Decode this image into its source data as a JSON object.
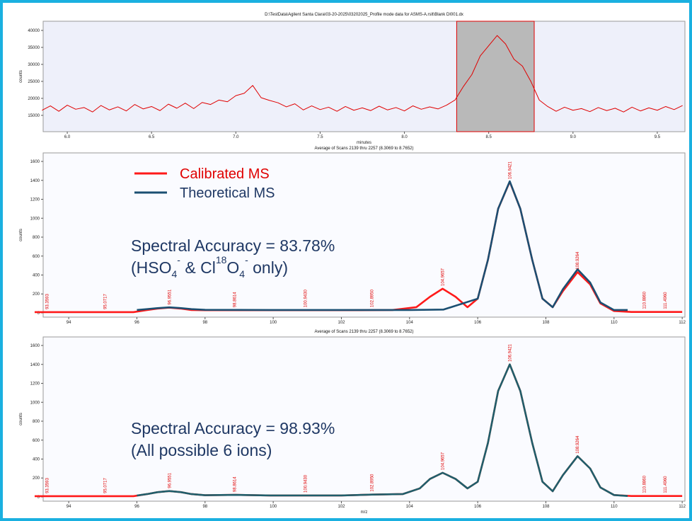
{
  "chart_data": [
    {
      "type": "line",
      "title": "D:\\TestData\\Agilent Santa Clara\\03-20-2025\\03202025_Profile mode data for ASMS-A.rslt\\Blank DI001.dx",
      "xlabel": "minutes",
      "ylabel": "counts",
      "xlim": [
        5.857,
        9.664
      ],
      "ylim": [
        10200,
        42700
      ],
      "xticks": [
        {
          "value": 6,
          "label": "6.0"
        },
        6.5,
        {
          "value": 7,
          "label": "7.0"
        },
        7.5,
        {
          "value": 8,
          "label": "8.0"
        },
        8.5,
        {
          "value": 9,
          "label": "9.0"
        },
        9.5
      ],
      "yticks": [
        15000,
        20000,
        25000,
        30000,
        35000,
        40000
      ],
      "selection": [
        8.31,
        8.77
      ],
      "series": [
        {
          "color": "#e00000",
          "x": [
            5.85,
            5.9,
            5.95,
            6.0,
            6.05,
            6.1,
            6.15,
            6.2,
            6.25,
            6.3,
            6.35,
            6.4,
            6.45,
            6.5,
            6.55,
            6.6,
            6.65,
            6.7,
            6.75,
            6.8,
            6.85,
            6.9,
            6.95,
            7.0,
            7.05,
            7.1,
            7.15,
            7.2,
            7.25,
            7.3,
            7.35,
            7.4,
            7.45,
            7.5,
            7.55,
            7.6,
            7.65,
            7.7,
            7.75,
            7.8,
            7.85,
            7.9,
            7.95,
            8.0,
            8.05,
            8.1,
            8.15,
            8.2,
            8.25,
            8.3,
            8.35,
            8.4,
            8.45,
            8.5,
            8.55,
            8.6,
            8.65,
            8.7,
            8.75,
            8.8,
            8.85,
            8.9,
            8.95,
            9.0,
            9.05,
            9.1,
            9.15,
            9.2,
            9.25,
            9.3,
            9.35,
            9.4,
            9.45,
            9.5,
            9.55,
            9.6,
            9.65
          ],
          "values": [
            16500,
            17800,
            16200,
            18000,
            16800,
            17300,
            16000,
            17900,
            16600,
            17500,
            16300,
            18200,
            16900,
            17600,
            16400,
            18300,
            17100,
            18600,
            17000,
            18800,
            18200,
            19500,
            19000,
            20800,
            21500,
            23800,
            20200,
            19400,
            18700,
            17500,
            18400,
            16600,
            17800,
            16700,
            17400,
            16200,
            17600,
            16500,
            17200,
            16400,
            17700,
            16600,
            17300,
            16300,
            17800,
            16800,
            17500,
            16900,
            18000,
            19500,
            23500,
            27000,
            32500,
            35500,
            38500,
            36000,
            31500,
            29500,
            25000,
            19500,
            17600,
            16200,
            17400,
            16500,
            17000,
            16100,
            17300,
            16400,
            17100,
            16000,
            17400,
            16300,
            17200,
            16500,
            17600,
            16700,
            17900
          ]
        }
      ]
    },
    {
      "type": "line",
      "title": "Average of Scans 2139 thru 2257 (8.3069 to 8.7652)",
      "ylabel": "counts",
      "xlim": [
        93.25,
        112.08
      ],
      "ylim": [
        -45,
        1690
      ],
      "xticks": [
        94,
        96,
        98,
        100,
        102,
        104,
        106,
        108,
        110,
        112
      ],
      "yticks": [
        0,
        200,
        400,
        600,
        800,
        1000,
        1200,
        1400,
        1600
      ],
      "legend": "upper left",
      "peak_labels": [
        93.3593,
        95.0717,
        96.9551,
        98.8614,
        {
          "value": 100.943,
          "label": "100.9430"
        },
        {
          "value": 102.895,
          "label": "102.8950"
        },
        104.9657,
        106.9421,
        108.9264,
        {
          "value": 110.886,
          "label": "110.8860"
        },
        {
          "value": 111.496,
          "label": "111.4960"
        }
      ],
      "annotations": [
        [
          {
            "text": "Spectral Accuracy = 83.78%"
          }
        ],
        [
          {
            "text": "(HSO"
          },
          {
            "text": "4",
            "style": "sub"
          },
          {
            "text": "-",
            "style": "sup"
          },
          {
            "text": " & Cl"
          },
          {
            "text": "18",
            "style": "sup"
          },
          {
            "text": "O"
          },
          {
            "text": "4",
            "style": "sub"
          },
          {
            "text": "-",
            "style": "sup"
          },
          {
            "text": " only)"
          }
        ]
      ],
      "series": [
        {
          "name": "Calibrated MS",
          "color": "#ff1a1a",
          "x": [
            93,
            95.9,
            96.3,
            96.6,
            96.95,
            97.3,
            97.6,
            98,
            100,
            102,
            103.5,
            104.2,
            104.6,
            104.97,
            105.35,
            105.7,
            106,
            106.3,
            106.6,
            106.94,
            107.25,
            107.6,
            107.9,
            108.2,
            108.5,
            108.93,
            109.3,
            109.6,
            110,
            110.5,
            112
          ],
          "values": [
            8,
            8,
            30,
            45,
            55,
            45,
            30,
            28,
            28,
            28,
            30,
            60,
            170,
            255,
            170,
            60,
            150,
            560,
            1100,
            1385,
            1100,
            560,
            150,
            60,
            230,
            430,
            300,
            100,
            20,
            10,
            10
          ]
        },
        {
          "name": "Theoretical MS",
          "color": "#1b4f72",
          "x": [
            96,
            96.3,
            96.6,
            96.95,
            97.3,
            97.6,
            98,
            100,
            102,
            104,
            105,
            106,
            106.3,
            106.6,
            106.94,
            107.25,
            107.6,
            107.9,
            108.2,
            108.5,
            108.93,
            109.3,
            109.6,
            110,
            110.4
          ],
          "values": [
            30,
            40,
            50,
            58,
            50,
            40,
            32,
            30,
            30,
            30,
            35,
            150,
            560,
            1100,
            1390,
            1100,
            560,
            150,
            60,
            250,
            460,
            320,
            110,
            30,
            30
          ]
        }
      ]
    },
    {
      "type": "line",
      "title": "Average of Scans 2139 thru 2257 (8.3069 to 8.7652)",
      "xlabel": "m/z",
      "ylabel": "counts",
      "xlim": [
        93.25,
        112.08
      ],
      "ylim": [
        -45,
        1690
      ],
      "xticks": [
        94,
        96,
        98,
        100,
        102,
        104,
        106,
        108,
        110,
        112
      ],
      "yticks": [
        0,
        200,
        400,
        600,
        800,
        1000,
        1200,
        1400,
        1600
      ],
      "peak_labels": [
        93.3593,
        95.0717,
        96.9551,
        98.8614,
        {
          "value": 100.943,
          "label": "100.9430"
        },
        {
          "value": 102.895,
          "label": "102.8950"
        },
        104.9657,
        106.9421,
        108.9264,
        {
          "value": 110.886,
          "label": "110.8860"
        },
        {
          "value": 111.496,
          "label": "111.4960"
        }
      ],
      "annotations": [
        [
          {
            "text": "Spectral Accuracy = 98.93%"
          }
        ],
        [
          {
            "text": "(All possible 6 ions)"
          }
        ]
      ],
      "series": [
        {
          "color": "#ff1a1a",
          "x": [
            93,
            95.9,
            96.3,
            96.6,
            96.95,
            97.3,
            97.6,
            98,
            98.9,
            100,
            100.9,
            102,
            102.9,
            103.8,
            104.3,
            104.6,
            104.97,
            105.35,
            105.7,
            106,
            106.3,
            106.6,
            106.94,
            107.25,
            107.6,
            107.9,
            108.2,
            108.5,
            108.93,
            109.3,
            109.6,
            110,
            110.5,
            112
          ],
          "values": [
            8,
            8,
            30,
            50,
            62,
            50,
            30,
            18,
            22,
            15,
            15,
            15,
            25,
            30,
            90,
            190,
            255,
            190,
            90,
            160,
            570,
            1120,
            1400,
            1120,
            570,
            160,
            60,
            230,
            430,
            300,
            100,
            20,
            10,
            10
          ]
        },
        {
          "color": "#1f5f6b",
          "x": [
            96,
            96.3,
            96.6,
            96.95,
            97.3,
            97.6,
            98,
            98.9,
            100,
            100.9,
            102,
            102.9,
            103.8,
            104.3,
            104.6,
            104.97,
            105.35,
            105.7,
            106,
            106.3,
            106.6,
            106.94,
            107.25,
            107.6,
            107.9,
            108.2,
            108.5,
            108.93,
            109.3,
            109.6,
            110,
            110.4
          ],
          "values": [
            15,
            30,
            50,
            62,
            50,
            30,
            18,
            22,
            15,
            15,
            15,
            25,
            30,
            90,
            190,
            255,
            190,
            90,
            160,
            570,
            1120,
            1400,
            1120,
            570,
            160,
            60,
            230,
            430,
            300,
            100,
            20,
            10
          ]
        }
      ]
    }
  ]
}
